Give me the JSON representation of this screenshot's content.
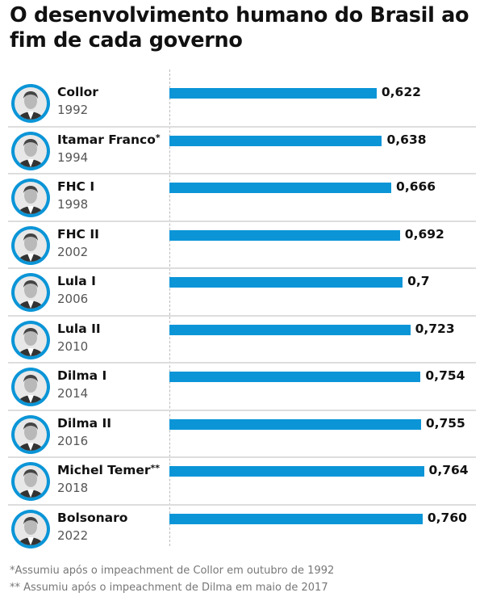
{
  "title": "O desenvolvimento humano do Brasil ao fim de cada governo",
  "colors": {
    "bar": "#0b95d7",
    "avatar_ring": "#0b95d7"
  },
  "chart_data": {
    "type": "bar",
    "orientation": "horizontal",
    "title": "O desenvolvimento humano do Brasil ao fim de cada governo",
    "categories": [
      "Collor",
      "Itamar Franco*",
      "FHC I",
      "FHC II",
      "Lula I",
      "Lula II",
      "Dilma I",
      "Dilma II",
      "Michel Temer**",
      "Bolsonaro"
    ],
    "years": [
      "1992",
      "1994",
      "1998",
      "2002",
      "2006",
      "2010",
      "2014",
      "2016",
      "2018",
      "2022"
    ],
    "values": [
      0.622,
      0.638,
      0.666,
      0.692,
      0.7,
      0.723,
      0.754,
      0.755,
      0.764,
      0.76
    ],
    "labels": [
      "0,622",
      "0,638",
      "0,666",
      "0,692",
      "0,7",
      "0,723",
      "0,754",
      "0,755",
      "0,764",
      "0,760"
    ],
    "xlim": [
      0,
      1
    ],
    "grid": false
  },
  "rows": [
    {
      "name": "Collor",
      "mark": "",
      "year": "1992",
      "value_label": "0,622",
      "icon": "portrait-photo"
    },
    {
      "name": "Itamar Franco",
      "mark": "*",
      "year": "1994",
      "value_label": "0,638",
      "icon": "portrait-photo"
    },
    {
      "name": "FHC I",
      "mark": "",
      "year": "1998",
      "value_label": "0,666",
      "icon": "portrait-photo"
    },
    {
      "name": "FHC II",
      "mark": "",
      "year": "2002",
      "value_label": "0,692",
      "icon": "portrait-photo"
    },
    {
      "name": "Lula I",
      "mark": "",
      "year": "2006",
      "value_label": "0,7",
      "icon": "portrait-photo"
    },
    {
      "name": "Lula II",
      "mark": "",
      "year": "2010",
      "value_label": "0,723",
      "icon": "portrait-photo"
    },
    {
      "name": "Dilma I",
      "mark": "",
      "year": "2014",
      "value_label": "0,754",
      "icon": "portrait-photo"
    },
    {
      "name": "Dilma II",
      "mark": "",
      "year": "2016",
      "value_label": "0,755",
      "icon": "portrait-photo"
    },
    {
      "name": "Michel Temer",
      "mark": "**",
      "year": "2018",
      "value_label": "0,764",
      "icon": "portrait-photo"
    },
    {
      "name": "Bolsonaro",
      "mark": "",
      "year": "2022",
      "value_label": "0,760",
      "icon": "portrait-photo"
    }
  ],
  "footnotes": [
    "*Assumiu após o impeachment de Collor em outubro de 1992",
    "** Assumiu após o impeachment de Dilma em maio de 2017"
  ]
}
